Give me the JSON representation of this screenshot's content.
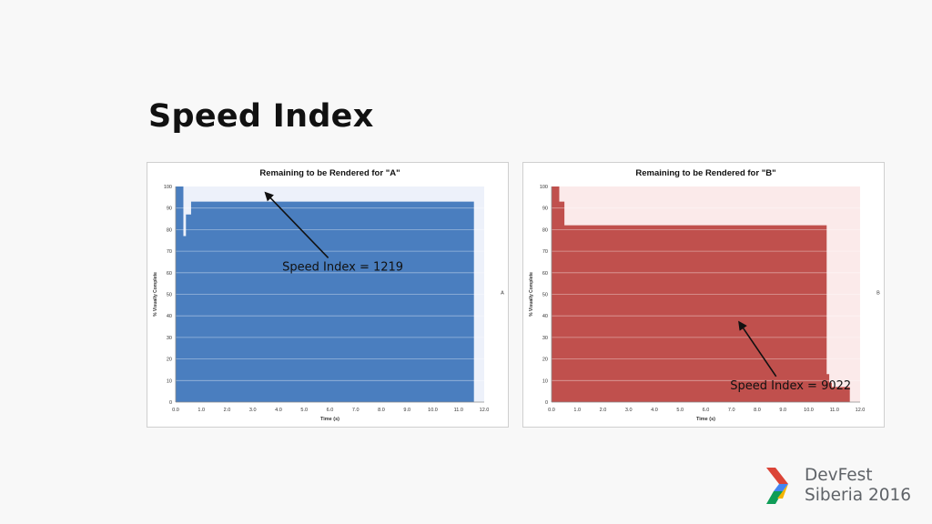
{
  "slide": {
    "title": "Speed Index"
  },
  "branding": {
    "line1": "DevFest",
    "line2": "Siberia 2016",
    "logo_icon": "devfest-chevron-logo"
  },
  "chart_data": [
    {
      "type": "area",
      "title": "Remaining to be Rendered for \"A\"",
      "xlabel": "Time (s)",
      "ylabel": "% Visually Complete",
      "series_label": "A",
      "annotation": "Speed Index = 1219",
      "color": "#4a7ebf",
      "bg_color": "#edf1fa",
      "xlim": [
        0,
        12
      ],
      "ylim": [
        0,
        100
      ],
      "x_ticks": [
        "0.0",
        "1.0",
        "2.0",
        "3.0",
        "4.0",
        "5.0",
        "6.0",
        "7.0",
        "8.0",
        "9.0",
        "10.0",
        "11.0",
        "12.0"
      ],
      "y_ticks": [
        "0",
        "10",
        "20",
        "30",
        "40",
        "50",
        "60",
        "70",
        "80",
        "90",
        "100"
      ],
      "steps": [
        {
          "x": 0.0,
          "y": 100
        },
        {
          "x": 0.3,
          "y": 77
        },
        {
          "x": 0.4,
          "y": 87
        },
        {
          "x": 0.6,
          "y": 93
        },
        {
          "x": 11.6,
          "y": 0
        }
      ],
      "annotation_point": {
        "x": 3.5,
        "y": 97
      },
      "annotation_text_at": {
        "x": 6.5,
        "y": 61
      }
    },
    {
      "type": "area",
      "title": "Remaining to be Rendered for \"B\"",
      "xlabel": "Time (s)",
      "ylabel": "% Visually Complete",
      "series_label": "B",
      "annotation": "Speed Index = 9022",
      "color": "#c0504d",
      "bg_color": "#fbeaea",
      "xlim": [
        0,
        12
      ],
      "ylim": [
        0,
        100
      ],
      "x_ticks": [
        "0.0",
        "1.0",
        "2.0",
        "3.0",
        "4.0",
        "5.0",
        "6.0",
        "7.0",
        "8.0",
        "9.0",
        "10.0",
        "11.0",
        "12.0"
      ],
      "y_ticks": [
        "0",
        "10",
        "20",
        "30",
        "40",
        "50",
        "60",
        "70",
        "80",
        "90",
        "100"
      ],
      "steps": [
        {
          "x": 0.0,
          "y": 100
        },
        {
          "x": 0.3,
          "y": 93
        },
        {
          "x": 0.5,
          "y": 82
        },
        {
          "x": 10.7,
          "y": 13
        },
        {
          "x": 10.8,
          "y": 9
        },
        {
          "x": 10.9,
          "y": 7
        },
        {
          "x": 11.6,
          "y": 0
        }
      ],
      "annotation_point": {
        "x": 7.3,
        "y": 37
      },
      "annotation_text_at": {
        "x": 9.3,
        "y": 6
      }
    }
  ]
}
